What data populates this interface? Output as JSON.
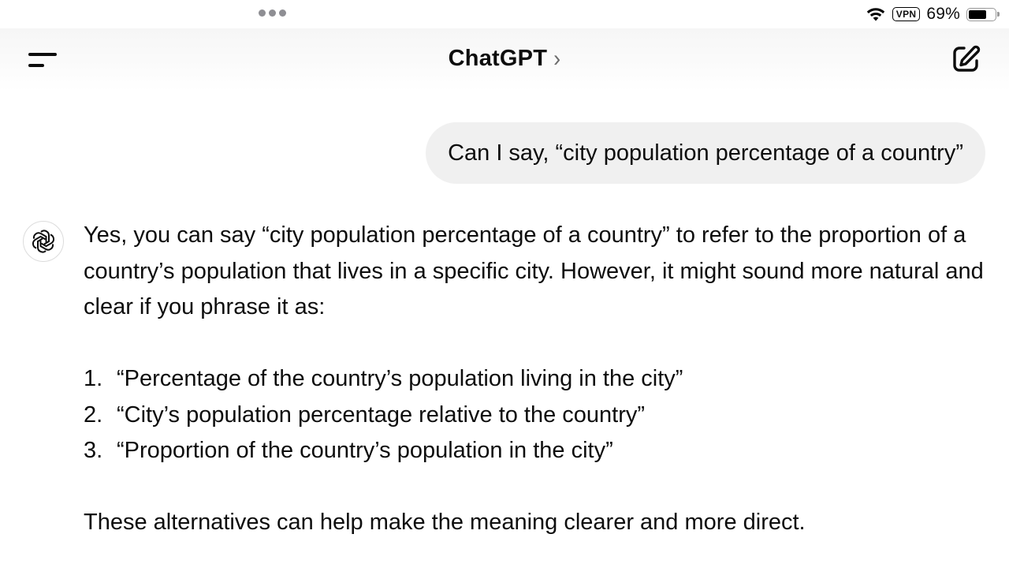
{
  "status_bar": {
    "battery_percent": "69%",
    "battery_level": 0.69,
    "vpn_label": "VPN",
    "wifi_icon": "wifi-icon",
    "battery_icon": "battery-icon"
  },
  "header": {
    "title": "ChatGPT",
    "chevron": "›",
    "menu_icon": "menu-icon",
    "new_chat_icon": "compose-icon"
  },
  "conversation": {
    "user_message": "Can I say, “city population percentage of a country”",
    "assistant": {
      "avatar_icon": "openai-logo-icon",
      "intro": "Yes, you can say “city population percentage of a country” to refer to the proportion of a country’s population that lives in a specific city. However, it might sound more natural and clear if you phrase it as:",
      "list": [
        {
          "num": "1.",
          "text": "“Percentage of the country’s population living in the city”"
        },
        {
          "num": "2.",
          "text": "“City’s population percentage relative to the country”"
        },
        {
          "num": "3.",
          "text": "“Proportion of the country’s population in the city”"
        }
      ],
      "closing": "These alternatives can help make the meaning clearer and more direct."
    }
  },
  "colors": {
    "bubble_bg": "#f0f0f0",
    "text": "#0d0d0d",
    "background": "#ffffff"
  }
}
